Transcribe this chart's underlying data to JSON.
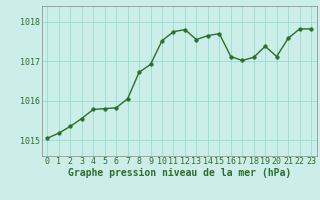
{
  "x": [
    0,
    1,
    2,
    3,
    4,
    5,
    6,
    7,
    8,
    9,
    10,
    11,
    12,
    13,
    14,
    15,
    16,
    17,
    18,
    19,
    20,
    21,
    22,
    23
  ],
  "y": [
    1015.05,
    1015.18,
    1015.35,
    1015.55,
    1015.78,
    1015.8,
    1015.82,
    1016.05,
    1016.72,
    1016.92,
    1017.52,
    1017.75,
    1017.8,
    1017.55,
    1017.65,
    1017.7,
    1017.12,
    1017.02,
    1017.1,
    1017.38,
    1017.12,
    1017.58,
    1017.82,
    1017.82
  ],
  "yticks": [
    1015,
    1016,
    1017,
    1018
  ],
  "xticks": [
    0,
    1,
    2,
    3,
    4,
    5,
    6,
    7,
    8,
    9,
    10,
    11,
    12,
    13,
    14,
    15,
    16,
    17,
    18,
    19,
    20,
    21,
    22,
    23
  ],
  "ylim": [
    1014.6,
    1018.4
  ],
  "xlim": [
    -0.5,
    23.5
  ],
  "line_color": "#2d6e2d",
  "marker_color": "#2d6e2d",
  "bg_color": "#cceee8",
  "grid_color": "#99ddd0",
  "xlabel": "Graphe pression niveau de la mer (hPa)",
  "xlabel_fontsize": 7,
  "tick_fontsize": 6,
  "line_width": 1.0,
  "marker_size": 2.5
}
